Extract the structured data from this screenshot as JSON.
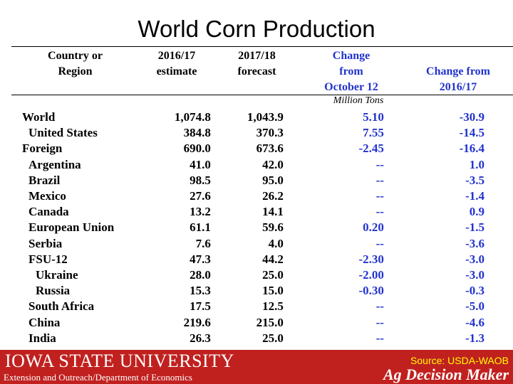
{
  "title": "World Corn Production",
  "headers": {
    "c1": [
      "Country or",
      "Region"
    ],
    "c2": [
      "2016/17",
      "estimate"
    ],
    "c3": [
      "2017/18",
      "forecast"
    ],
    "c4": [
      "Change",
      "from",
      "October 12"
    ],
    "c5": [
      "Change from",
      "2016/17"
    ]
  },
  "units": "Million Tons",
  "rows": [
    {
      "name": "World",
      "indent": 0,
      "est": "1,074.8",
      "fcst": "1,043.9",
      "chg_oct": "5.10",
      "chg_yr": "-30.9"
    },
    {
      "name": "United States",
      "indent": 1,
      "est": "384.8",
      "fcst": "370.3",
      "chg_oct": "7.55",
      "chg_yr": "-14.5"
    },
    {
      "name": "Foreign",
      "indent": 0,
      "est": "690.0",
      "fcst": "673.6",
      "chg_oct": "-2.45",
      "chg_yr": "-16.4"
    },
    {
      "name": "Argentina",
      "indent": 1,
      "est": "41.0",
      "fcst": "42.0",
      "chg_oct": "--",
      "chg_yr": "1.0"
    },
    {
      "name": "Brazil",
      "indent": 1,
      "est": "98.5",
      "fcst": "95.0",
      "chg_oct": "--",
      "chg_yr": "-3.5"
    },
    {
      "name": "Mexico",
      "indent": 1,
      "est": "27.6",
      "fcst": "26.2",
      "chg_oct": "--",
      "chg_yr": "-1.4"
    },
    {
      "name": "Canada",
      "indent": 1,
      "est": "13.2",
      "fcst": "14.1",
      "chg_oct": "--",
      "chg_yr": "0.9"
    },
    {
      "name": "European Union",
      "indent": 1,
      "est": "61.1",
      "fcst": "59.6",
      "chg_oct": "0.20",
      "chg_yr": "-1.5"
    },
    {
      "name": "Serbia",
      "indent": 1,
      "est": "7.6",
      "fcst": "4.0",
      "chg_oct": "--",
      "chg_yr": "-3.6"
    },
    {
      "name": "FSU-12",
      "indent": 1,
      "est": "47.3",
      "fcst": "44.2",
      "chg_oct": "-2.30",
      "chg_yr": "-3.0"
    },
    {
      "name": "Ukraine",
      "indent": 2,
      "est": "28.0",
      "fcst": "25.0",
      "chg_oct": "-2.00",
      "chg_yr": "-3.0"
    },
    {
      "name": "Russia",
      "indent": 2,
      "est": "15.3",
      "fcst": "15.0",
      "chg_oct": "-0.30",
      "chg_yr": "-0.3"
    },
    {
      "name": "South Africa",
      "indent": 1,
      "est": "17.5",
      "fcst": "12.5",
      "chg_oct": "--",
      "chg_yr": "-5.0"
    },
    {
      "name": "China",
      "indent": 1,
      "est": "219.6",
      "fcst": "215.0",
      "chg_oct": "--",
      "chg_yr": "-4.6"
    },
    {
      "name": "India",
      "indent": 1,
      "est": "26.3",
      "fcst": "25.0",
      "chg_oct": "--",
      "chg_yr": "-1.3"
    }
  ],
  "footer": {
    "university": "IOWA STATE UNIVERSITY",
    "department": "Extension and Outreach/Department of Economics",
    "source": "Source: USDA-WAOB",
    "brand": "Ag Decision Maker"
  },
  "colors": {
    "accent_blue": "#2233cc",
    "footer_red": "#c0211f",
    "source_yellow": "#ffff00"
  }
}
